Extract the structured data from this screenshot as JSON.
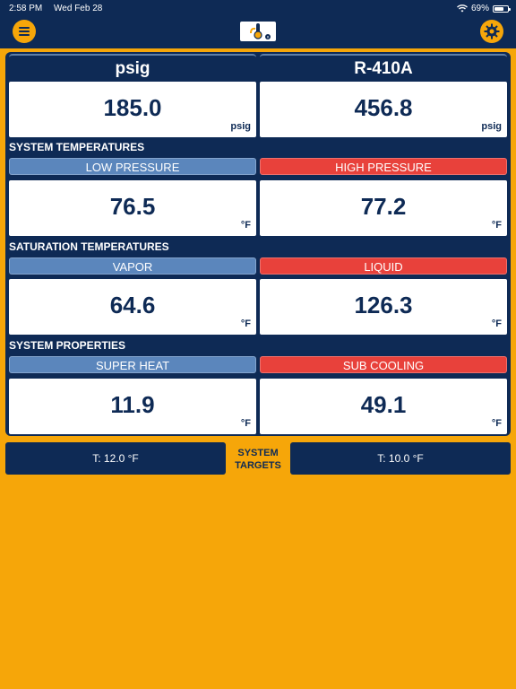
{
  "status_bar": {
    "time": "2:58 PM",
    "date": "Wed Feb 28",
    "battery": "69%",
    "battery_level": 0.69
  },
  "nav": {
    "menu_icon": "menu-icon",
    "settings_icon": "gear-icon",
    "logo_icon": "app-logo-icon"
  },
  "headers": {
    "left": "psig",
    "right": "R-410A"
  },
  "pressure": {
    "low_value": "185.0",
    "low_unit": "psig",
    "high_value": "456.8",
    "high_unit": "psig"
  },
  "system_temperatures": {
    "title": "SYSTEM TEMPERATURES",
    "left_label": "LOW PRESSURE",
    "right_label": "HIGH PRESSURE",
    "left_value": "76.5",
    "right_value": "77.2",
    "unit": "°F"
  },
  "saturation_temperatures": {
    "title": "SATURATION TEMPERATURES",
    "left_label": "VAPOR",
    "right_label": "LIQUID",
    "left_value": "64.6",
    "right_value": "126.3",
    "unit": "°F"
  },
  "system_properties": {
    "title": "SYSTEM PROPERTIES",
    "left_label": "SUPER HEAT",
    "right_label": "SUB COOLING",
    "left_value": "11.9",
    "right_value": "49.1",
    "unit": "°F"
  },
  "targets": {
    "left": "T: 12.0 °F",
    "right": "T: 10.0 °F",
    "label_line1": "SYSTEM",
    "label_line2": "TARGETS"
  },
  "colors": {
    "navy": "#0E2A55",
    "orange": "#F6A609",
    "blue": "#5B86BC",
    "red": "#E8413B"
  }
}
